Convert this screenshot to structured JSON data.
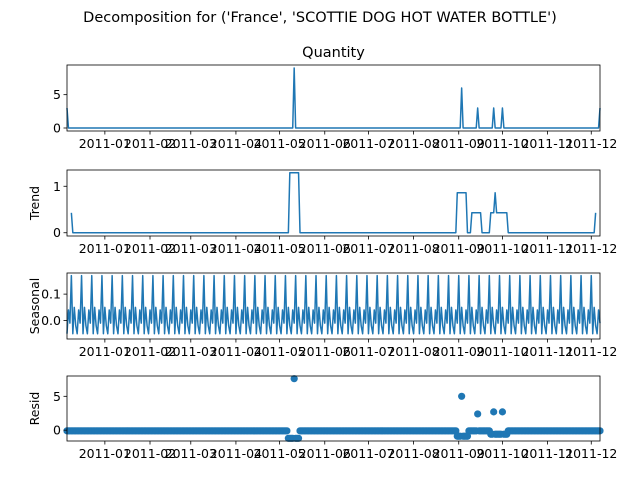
{
  "suptitle": "Decomposition for ('France', 'SCOTTIE DOG HOT WATER BOTTLE')",
  "chart_data": [
    {
      "type": "line",
      "title": "Quantity",
      "ylabel": "",
      "x_tick_labels": [
        "2011-01",
        "2011-02",
        "2011-03",
        "2011-04",
        "2011-05",
        "2011-06",
        "2011-07",
        "2011-08",
        "2011-09",
        "2011-10",
        "2011-11",
        "2011-12"
      ],
      "y_ticks": [
        0,
        5
      ],
      "ylim": [
        -0.45,
        9.45
      ],
      "x_range_days": [
        0,
        366
      ],
      "spikes": [
        {
          "x_day": 0,
          "value": 3
        },
        {
          "x_day": 156,
          "value": 9
        },
        {
          "x_day": 271,
          "value": 6
        },
        {
          "x_day": 282,
          "value": 3
        },
        {
          "x_day": 293,
          "value": 3
        },
        {
          "x_day": 299,
          "value": 3
        },
        {
          "x_day": 366,
          "value": 3
        }
      ],
      "baseline": 0
    },
    {
      "type": "line",
      "title": "",
      "ylabel": "Trend",
      "x_tick_labels": [
        "2011-01",
        "2011-02",
        "2011-03",
        "2011-04",
        "2011-05",
        "2011-06",
        "2011-07",
        "2011-08",
        "2011-09",
        "2011-10",
        "2011-11",
        "2011-12"
      ],
      "y_ticks": [
        0,
        1
      ],
      "ylim": [
        -0.07,
        1.35
      ],
      "points": [
        [
          3,
          0.43
        ],
        [
          4,
          0
        ],
        [
          152,
          0
        ],
        [
          153,
          1.29
        ],
        [
          159,
          1.29
        ],
        [
          160,
          0
        ],
        [
          267,
          0
        ],
        [
          268,
          0.86
        ],
        [
          274,
          0.86
        ],
        [
          275,
          0
        ],
        [
          277,
          0
        ],
        [
          278,
          0.43
        ],
        [
          284,
          0.43
        ],
        [
          285,
          0
        ],
        [
          290,
          0
        ],
        [
          291,
          0.43
        ],
        [
          293,
          0.43
        ],
        [
          294,
          0.86
        ],
        [
          295,
          0.43
        ],
        [
          302,
          0.43
        ],
        [
          303,
          0
        ],
        [
          362,
          0
        ],
        [
          363,
          0.43
        ]
      ]
    },
    {
      "type": "line",
      "title": "",
      "ylabel": "Seasonal",
      "x_tick_labels": [
        "2011-01",
        "2011-02",
        "2011-03",
        "2011-04",
        "2011-05",
        "2011-06",
        "2011-07",
        "2011-08",
        "2011-09",
        "2011-10",
        "2011-11",
        "2011-12"
      ],
      "y_ticks": [
        0.0,
        0.1
      ],
      "ylim": [
        -0.07,
        0.18
      ],
      "period_days": 7,
      "weekly_pattern": [
        -0.05,
        0.04,
        -0.01,
        0.17,
        -0.05,
        0.05,
        -0.02
      ]
    },
    {
      "type": "scatter",
      "title": "",
      "ylabel": "Resid",
      "x_tick_labels": [
        "2011-01",
        "2011-02",
        "2011-03",
        "2011-04",
        "2011-05",
        "2011-06",
        "2011-07",
        "2011-08",
        "2011-09",
        "2011-10",
        "2011-11",
        "2011-12"
      ],
      "y_ticks": [
        0,
        5
      ],
      "ylim": [
        -1.6,
        8.0
      ],
      "baseline": -0.1,
      "outliers": [
        {
          "x_day": 156,
          "value": 7.6
        },
        {
          "x_day": 271,
          "value": 5.0
        },
        {
          "x_day": 282,
          "value": 2.4
        },
        {
          "x_day": 293,
          "value": 2.7
        },
        {
          "x_day": 299,
          "value": 2.7
        }
      ],
      "dips": [
        {
          "from_day": 152,
          "to_day": 159,
          "value": -1.2
        },
        {
          "from_day": 268,
          "to_day": 275,
          "value": -0.9
        },
        {
          "from_day": 291,
          "to_day": 302,
          "value": -0.6
        }
      ]
    }
  ]
}
